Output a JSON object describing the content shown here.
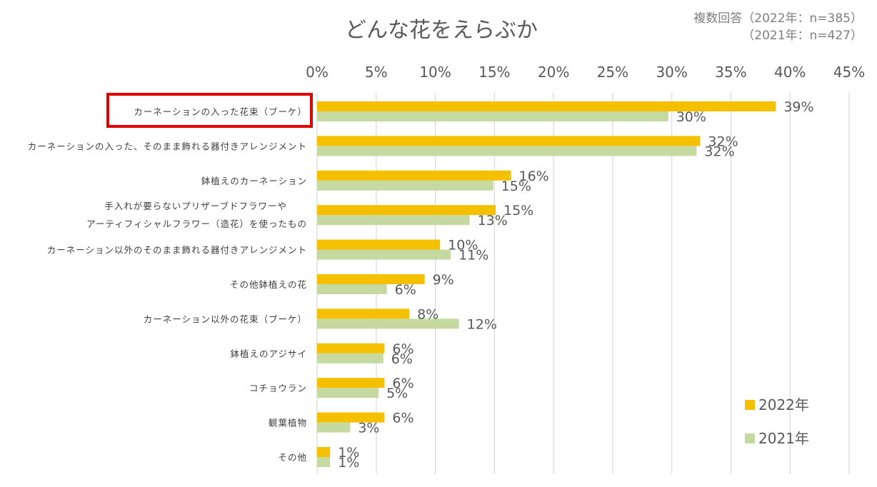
{
  "chart_data": {
    "type": "bar",
    "orientation": "horizontal",
    "title": "どんな花をえらぶか",
    "note": [
      "複数回答（2022年：n=385）",
      "（2021年：n=427）"
    ],
    "x_tick_labels": [
      "0%",
      "5%",
      "10%",
      "15%",
      "20%",
      "25%",
      "30%",
      "35%",
      "40%",
      "45%"
    ],
    "xlim": [
      0,
      45
    ],
    "grid": true,
    "legend_position": "bottom-right",
    "categories": [
      [
        "カーネーションの入った花束（ブーケ）"
      ],
      [
        "カーネーションの入った、そのまま飾れる器付きアレンジメント"
      ],
      [
        "鉢植えのカーネーション"
      ],
      [
        "手入れが要らないプリザーブドフラワーや",
        "アーティフィシャルフラワー（造花）を使ったもの"
      ],
      [
        "カーネーション以外のそのまま飾れる器付きアレンジメント"
      ],
      [
        "その他鉢植えの花"
      ],
      [
        "カーネーション以外の花束（ブーケ）"
      ],
      [
        "鉢植えのアジサイ"
      ],
      [
        "コチョウラン"
      ],
      [
        "観葉植物"
      ],
      [
        "その他"
      ]
    ],
    "highlighted_category_index": 0,
    "highlight_color": "#e00000",
    "series": [
      {
        "name": "2022年",
        "color": "#f5c000",
        "values": [
          38.8,
          32.4,
          16.4,
          15.1,
          10.4,
          9.1,
          7.8,
          5.7,
          5.7,
          5.7,
          1.1
        ],
        "labels": [
          "39%",
          "32%",
          "16%",
          "15%",
          "10%",
          "9%",
          "8%",
          "6%",
          "6%",
          "6%",
          "1%"
        ]
      },
      {
        "name": "2021年",
        "color": "#c5d9a0",
        "values": [
          29.7,
          32.1,
          14.9,
          12.9,
          11.3,
          5.9,
          12.0,
          5.6,
          5.2,
          2.8,
          1.1
        ],
        "labels": [
          "30%",
          "32%",
          "15%",
          "13%",
          "11%",
          "6%",
          "12%",
          "6%",
          "5%",
          "3%",
          "1%"
        ]
      }
    ]
  }
}
